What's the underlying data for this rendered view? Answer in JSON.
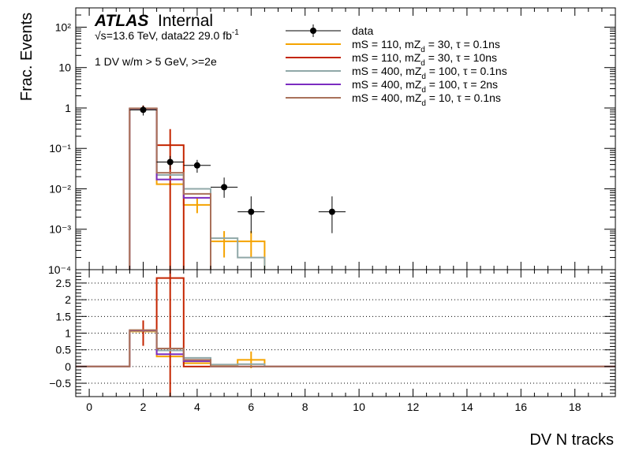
{
  "atlas": {
    "brand": "ATLAS",
    "tag": "Internal"
  },
  "energy": {
    "sqrt": "√s",
    "rest": "=13.6 TeV, data22 29.0 fb",
    "exp": "-1"
  },
  "selection": "1 DV w/m > 5 GeV, >=2e",
  "chart_data": [
    {
      "panel": "top",
      "type": "histogram",
      "ylabel": "Frac. Events",
      "yscale": "log",
      "ylim": [
        0.0001,
        300
      ],
      "xlim": [
        -0.5,
        19.5
      ],
      "y_tick_labels": [
        "10⁻⁴",
        "10⁻³",
        "10⁻²",
        "10⁻¹",
        "1",
        "10",
        "10²"
      ],
      "y_tick_values": [
        0.0001,
        0.001,
        0.01,
        0.1,
        1,
        10,
        100
      ],
      "legend_position": "top-right",
      "data": {
        "name": "data",
        "color": "#000000",
        "points": [
          {
            "x": 2,
            "y": 0.9,
            "ylo": 0.65,
            "yhi": 1.15
          },
          {
            "x": 3,
            "y": 0.046,
            "ylo": 0.03,
            "yhi": 0.065
          },
          {
            "x": 4,
            "y": 0.038,
            "ylo": 0.025,
            "yhi": 0.052
          },
          {
            "x": 5,
            "y": 0.011,
            "ylo": 0.006,
            "yhi": 0.019
          },
          {
            "x": 6,
            "y": 0.0027,
            "ylo": 0.0008,
            "yhi": 0.0065
          },
          {
            "x": 9,
            "y": 0.0027,
            "ylo": 0.0008,
            "yhi": 0.0065
          }
        ]
      },
      "series": [
        {
          "label": "mS = 110, mZ",
          "sub": "d",
          "rest": " = 30, τ = 0.1ns",
          "color": "#f5a300",
          "bins": [
            {
              "lo": 1.5,
              "hi": 2.5,
              "y": 0.95
            },
            {
              "lo": 2.5,
              "hi": 3.5,
              "y": 0.013
            },
            {
              "lo": 3.5,
              "hi": 4.5,
              "y": 0.004
            },
            {
              "lo": 4.5,
              "hi": 5.5,
              "y": 0.0005
            },
            {
              "lo": 5.5,
              "hi": 6.5,
              "y": 0.0005
            }
          ],
          "errors": [
            {
              "x": 4,
              "ylo": 0.0025,
              "yhi": 0.006
            },
            {
              "x": 5,
              "ylo": 0.0002,
              "yhi": 0.0009
            },
            {
              "x": 6,
              "ylo": 0.0002,
              "yhi": 0.0009
            }
          ]
        },
        {
          "label": "mS = 110, mZ",
          "sub": "d",
          "rest": " = 30, τ = 10ns",
          "color": "#c42500",
          "bins": [
            {
              "lo": 1.5,
              "hi": 2.5,
              "y": 0.97
            },
            {
              "lo": 2.5,
              "hi": 3.5,
              "y": 0.12
            }
          ],
          "errors": [
            {
              "x": 2,
              "ylo": 0.8,
              "yhi": 1.15
            },
            {
              "x": 3,
              "ylo": 0.0001,
              "yhi": 0.3
            }
          ]
        },
        {
          "label": "mS = 400, mZ",
          "sub": "d",
          "rest": " = 100, τ = 0.1ns",
          "color": "#90a8a8",
          "bins": [
            {
              "lo": 1.5,
              "hi": 2.5,
              "y": 0.96
            },
            {
              "lo": 2.5,
              "hi": 3.5,
              "y": 0.022
            },
            {
              "lo": 3.5,
              "hi": 4.5,
              "y": 0.01
            },
            {
              "lo": 4.5,
              "hi": 5.5,
              "y": 0.0006
            },
            {
              "lo": 5.5,
              "hi": 6.5,
              "y": 0.0002
            }
          ],
          "errors": []
        },
        {
          "label": "mS = 400, mZ",
          "sub": "d",
          "rest": " = 100, τ = 2ns",
          "color": "#7b2cc0",
          "bins": [
            {
              "lo": 1.5,
              "hi": 2.5,
              "y": 0.97
            },
            {
              "lo": 2.5,
              "hi": 3.5,
              "y": 0.017
            },
            {
              "lo": 3.5,
              "hi": 4.5,
              "y": 0.006
            }
          ],
          "errors": []
        },
        {
          "label": "mS = 400, mZ",
          "sub": "d",
          "rest": " = 10, τ = 0.1ns",
          "color": "#a9715a",
          "bins": [
            {
              "lo": 1.5,
              "hi": 2.5,
              "y": 0.98
            },
            {
              "lo": 2.5,
              "hi": 3.5,
              "y": 0.025
            },
            {
              "lo": 3.5,
              "hi": 4.5,
              "y": 0.0075
            }
          ],
          "errors": []
        }
      ]
    },
    {
      "panel": "bottom",
      "type": "histogram",
      "xlabel": "DV N tracks",
      "ylim": [
        -0.9,
        2.9
      ],
      "xlim": [
        -0.5,
        19.5
      ],
      "y_tick_values": [
        -0.5,
        0,
        0.5,
        1,
        1.5,
        2,
        2.5
      ],
      "y_tick_labels": [
        "−0.5",
        "0",
        "0.5",
        "1",
        "1.5",
        "2",
        "2.5"
      ],
      "x_tick_values": [
        0,
        2,
        4,
        6,
        8,
        10,
        12,
        14,
        16,
        18
      ],
      "x_tick_labels": [
        "0",
        "2",
        "4",
        "6",
        "8",
        "10",
        "12",
        "14",
        "16",
        "18"
      ],
      "grid": "horizontal dotted",
      "series": [
        {
          "color": "#f5a300",
          "values": [
            0,
            0,
            1.05,
            0.3,
            0.1,
            0.05,
            0.2,
            0,
            0,
            0,
            0,
            0,
            0,
            0,
            0,
            0,
            0,
            0,
            0,
            0
          ],
          "errors": [
            {
              "x": 6,
              "ylo": -0.05,
              "yhi": 0.45
            }
          ]
        },
        {
          "color": "#c42500",
          "values": [
            0,
            0,
            1.08,
            2.65,
            0,
            0,
            0,
            0,
            0,
            0,
            0,
            0,
            0,
            0,
            0,
            0,
            0,
            0,
            0,
            0
          ],
          "errors": [
            {
              "x": 2,
              "ylo": 0.62,
              "yhi": 1.38
            },
            {
              "x": 3,
              "ylo": -0.9,
              "yhi": 2.9
            }
          ]
        },
        {
          "color": "#90a8a8",
          "values": [
            0,
            0,
            1.07,
            0.48,
            0.26,
            0.06,
            0.07,
            0,
            0,
            0,
            0,
            0,
            0,
            0,
            0,
            0,
            0,
            0,
            0,
            0
          ],
          "errors": []
        },
        {
          "color": "#7b2cc0",
          "values": [
            0,
            0,
            1.08,
            0.37,
            0.16,
            0,
            0,
            0,
            0,
            0,
            0,
            0,
            0,
            0,
            0,
            0,
            0,
            0,
            0,
            0
          ],
          "errors": []
        },
        {
          "color": "#a9715a",
          "values": [
            0,
            0,
            1.09,
            0.54,
            0.2,
            0,
            0,
            0,
            0,
            0,
            0,
            0,
            0,
            0,
            0,
            0,
            0,
            0,
            0,
            0
          ],
          "errors": []
        }
      ]
    }
  ]
}
